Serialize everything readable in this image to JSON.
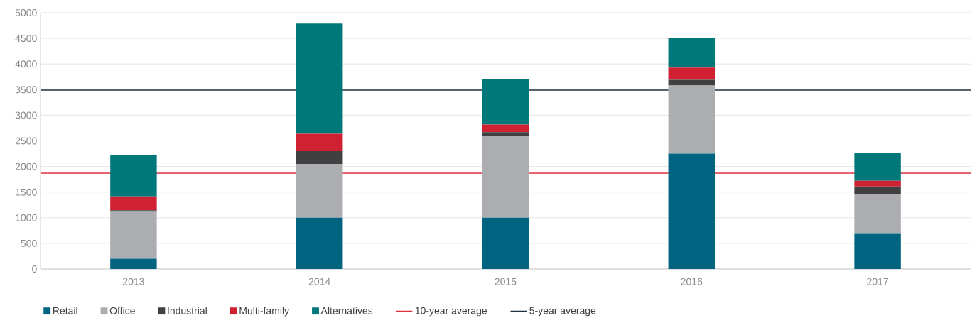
{
  "chart_data": {
    "type": "bar",
    "stacked": true,
    "categories": [
      "2013",
      "2014",
      "2015",
      "2016",
      "2017"
    ],
    "series": [
      {
        "name": "Retail",
        "color": "#00637f",
        "values": [
          200,
          1000,
          1000,
          2250,
          700
        ]
      },
      {
        "name": "Office",
        "color": "#acadb0",
        "values": [
          930,
          1050,
          1600,
          1330,
          760
        ]
      },
      {
        "name": "Industrial",
        "color": "#404041",
        "values": [
          15,
          250,
          70,
          110,
          150
        ]
      },
      {
        "name": "Multi-family",
        "color": "#cf2132",
        "values": [
          270,
          340,
          150,
          240,
          110
        ]
      },
      {
        "name": "Alternatives",
        "color": "#00787a",
        "values": [
          800,
          2150,
          880,
          580,
          550
        ]
      }
    ],
    "ref_lines": [
      {
        "axis": "y",
        "value": 1870,
        "label": "10-year average",
        "color": "#e0313f"
      },
      {
        "axis": "y",
        "value": 3490,
        "label": "5-year average",
        "color": "#1f3340"
      }
    ],
    "ylim": [
      0,
      5000
    ],
    "yticks": [
      0,
      500,
      1000,
      1500,
      2000,
      2500,
      3000,
      3500,
      4000,
      4500,
      5000
    ],
    "grid": "y",
    "legend": "bottom"
  }
}
